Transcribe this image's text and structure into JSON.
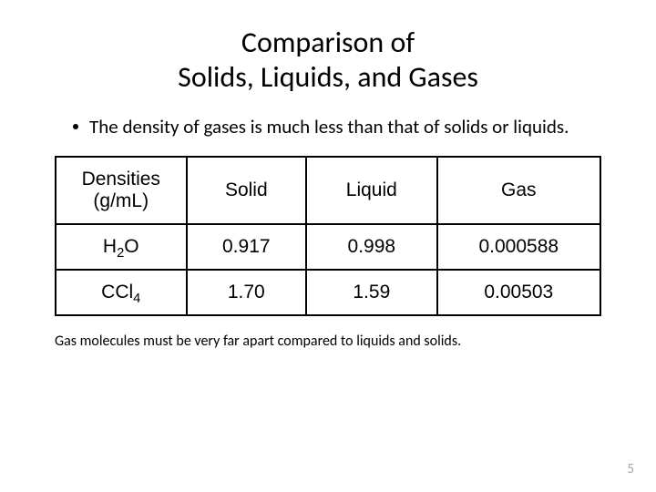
{
  "title_line1": "Comparison of",
  "title_line2": "Solids, Liquids, and Gases",
  "bullet_text": "The density of gases is much less than that of solids or liquids.",
  "table": {
    "columns": [
      "Densities (g/mL)",
      "Solid",
      "Liquid",
      "Gas"
    ],
    "header_col_line1": "Densities",
    "header_col_line2": "(g/mL)",
    "header_solid": "Solid",
    "header_liquid": "Liquid",
    "header_gas": "Gas",
    "row1_label_base": "H",
    "row1_label_sub": "2",
    "row1_label_suffix": "O",
    "row1_solid": "0.917",
    "row1_liquid": "0.998",
    "row1_gas": "0.000588",
    "row2_label_base": "CCl",
    "row2_label_sub": "4",
    "row2_solid": "1.70",
    "row2_liquid": "1.59",
    "row2_gas": "0.00503",
    "border_color": "#000000",
    "cell_fontsize": 21,
    "background_color": "#ffffff"
  },
  "footnote": "Gas molecules must be very far apart compared to liquids and solids.",
  "page_number": "5",
  "colors": {
    "text": "#000000",
    "page_num": "#a6a6a6",
    "background": "#ffffff"
  }
}
